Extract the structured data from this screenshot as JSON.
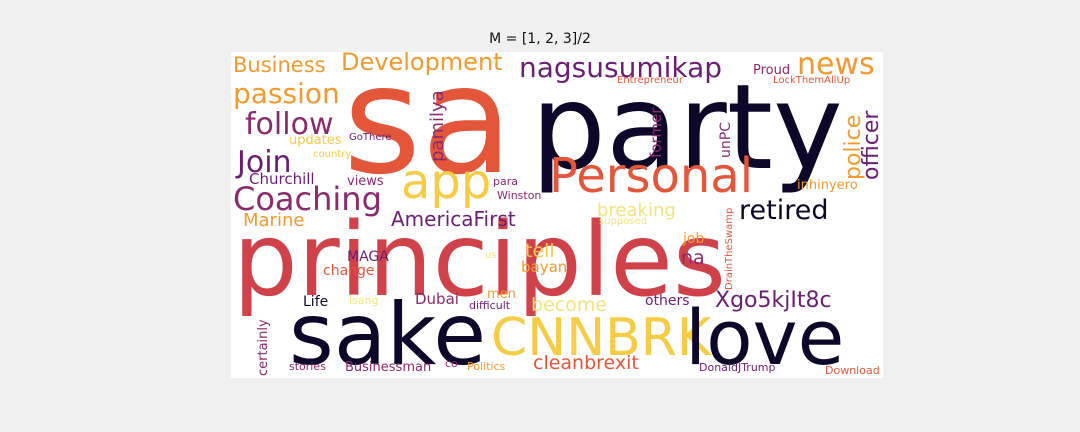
{
  "title": "M = [1, 2, 3]/2",
  "palette": {
    "black": "#0d0829",
    "purple": "#6b1f73",
    "magenta": "#8b2a6e",
    "red": "#d0424a",
    "orange": "#e4563a",
    "amber": "#f19a2f",
    "yellow": "#f6cc46",
    "pale": "#f4e37d"
  },
  "words": {
    "sa": "sa",
    "party": "party",
    "principles": "principles",
    "sake": "sake",
    "cnnbrk": "CNNBRK",
    "love": "love",
    "personal": "Personal",
    "app": "app",
    "coaching": "Coaching",
    "join": "Join",
    "follow": "follow",
    "passion": "passion",
    "business": "Business",
    "development": "Development",
    "nagsusumikap": "nagsusumikap",
    "news": "news",
    "retired": "retired",
    "police": "police",
    "officer": "officer",
    "americafirst": "AmericaFirst",
    "xgo": "Xgo5kjIt8c",
    "cleanbrexit": "cleanbrexit",
    "marine": "Marine",
    "churchill": "Churchill",
    "breaking": "breaking",
    "tell": "tell",
    "na": "na",
    "job": "job",
    "bayan": "bayan",
    "become": "become",
    "others": "others",
    "dubai": "Dubai",
    "life": "Life",
    "maga": "MAGA",
    "change": "change",
    "certainly": "certainly",
    "isang": "isang",
    "us": "us",
    "men": "men",
    "difficult": "difficult",
    "stories": "stories",
    "businessman": "Businessman",
    "co": "co",
    "politics": "Politics",
    "donaldjtrump": "DonaldJTrump",
    "download": "Download",
    "pamilya": "pamilya",
    "former": "former",
    "unpc": "unPC",
    "proud": "Proud",
    "entrepreneur": "Entrepreneur",
    "lockthemallup": "LockThemAllUp",
    "updates": "updates",
    "gothere": "GoThere",
    "country": "country",
    "views": "views",
    "para": "para",
    "winston": "Winston",
    "inhinyero": "inhinyero",
    "supposed": "supposed",
    "drainswamp": "DrainTheSwamp"
  }
}
